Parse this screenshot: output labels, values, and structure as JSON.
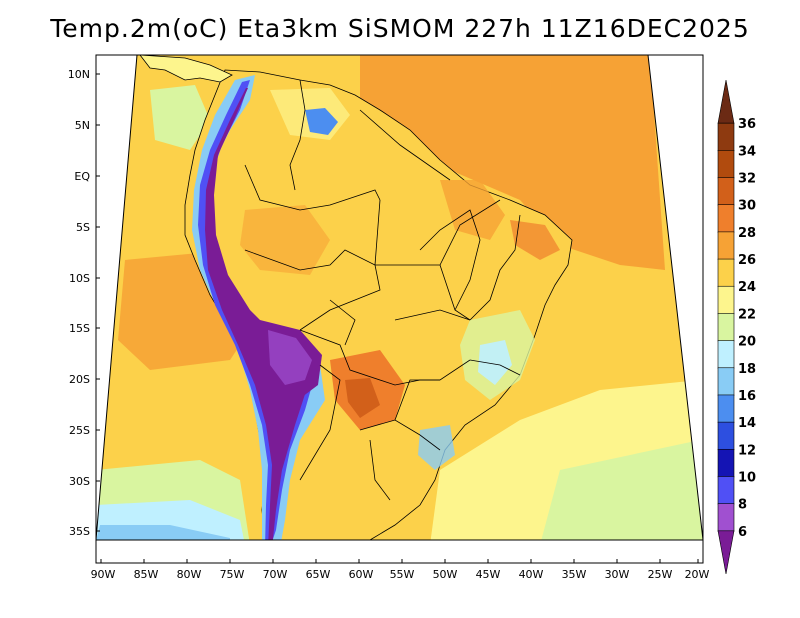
{
  "title": "Temp.2m(oC) Eta3km SiSMOM 227h 11Z16DEC2025",
  "variable": "Temp.2m (oC)",
  "model": "Eta3km SiSMOM",
  "forecast_hour": "227h",
  "valid_time": "11Z16DEC2025",
  "lat_ticks": [
    "10N",
    "5N",
    "EQ",
    "5S",
    "10S",
    "15S",
    "20S",
    "25S",
    "30S",
    "35S"
  ],
  "lon_ticks": [
    "90W",
    "85W",
    "80W",
    "75W",
    "70W",
    "65W",
    "60W",
    "55W",
    "50W",
    "45W",
    "40W",
    "35W",
    "30W",
    "25W",
    "20W"
  ],
  "colorbar": {
    "labels": [
      "36",
      "34",
      "32",
      "30",
      "28",
      "26",
      "24",
      "22",
      "20",
      "18",
      "16",
      "14",
      "12",
      "10",
      "8",
      "6"
    ],
    "colors": [
      "#6b2a14",
      "#8e3a10",
      "#b14b0e",
      "#d2601a",
      "#ef7f2c",
      "#f6a235",
      "#fcd14a",
      "#fdf58d",
      "#d9f5a0",
      "#bff0ff",
      "#89ccf5",
      "#4c8ef0",
      "#2d4fe0",
      "#1414b4",
      "#5050f5",
      "#a050d0",
      "#7a1c96"
    ]
  }
}
